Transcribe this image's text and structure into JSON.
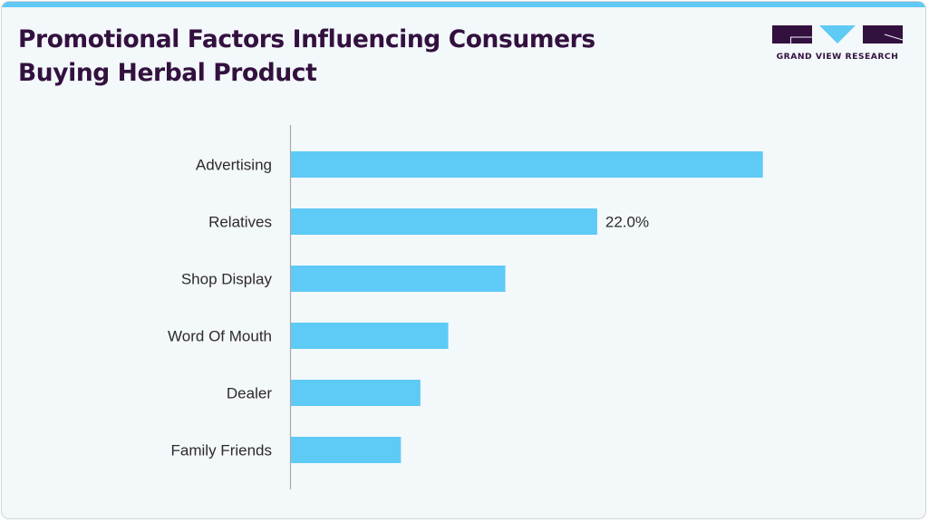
{
  "header": {
    "title": "Promotional Factors Influencing Consumers Buying Herbal Product",
    "logo_text": "GRAND VIEW RESEARCH"
  },
  "colors": {
    "bar": "#5ecaf6",
    "title": "#33113f",
    "accent_band": "#5fc8f5",
    "axis": "#a9a9a9"
  },
  "chart_data": {
    "type": "bar",
    "orientation": "horizontal",
    "title": "Promotional Factors Influencing Consumers Buying Herbal Product",
    "xlabel": "",
    "ylabel": "",
    "categories": [
      "Advertising",
      "Relatives",
      "Shop Display",
      "Word Of Mouth",
      "Dealer",
      "Family Friends"
    ],
    "values": [
      33.9,
      22.0,
      15.4,
      11.3,
      9.3,
      7.9
    ],
    "unit": "%",
    "xlim": [
      0,
      40
    ],
    "grid": false,
    "legend": "none",
    "data_labels": [
      {
        "category": "Relatives",
        "text": "22.0%"
      }
    ]
  }
}
